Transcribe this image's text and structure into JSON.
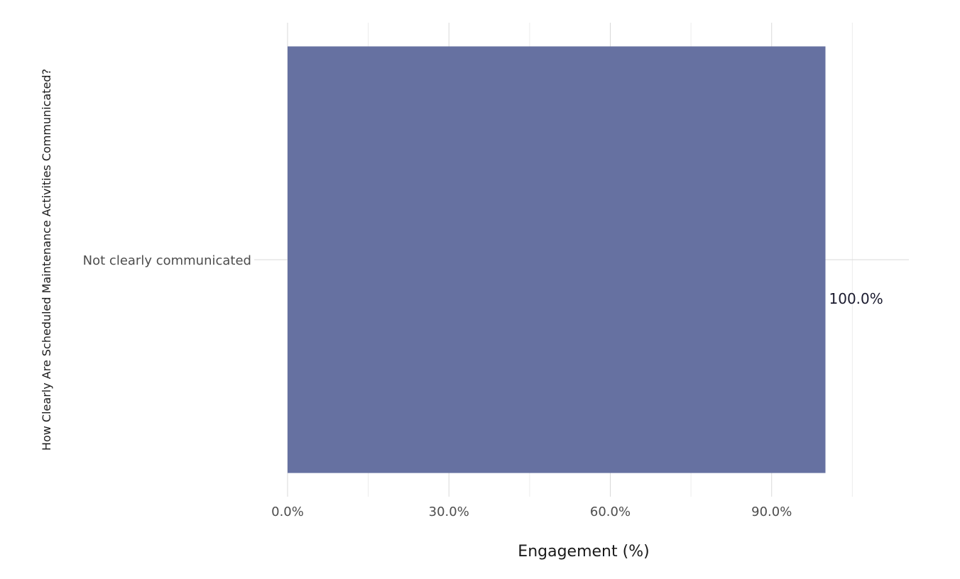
{
  "chart_data": {
    "type": "bar",
    "orientation": "horizontal",
    "categories": [
      "Not clearly communicated"
    ],
    "values": [
      100.0
    ],
    "data_labels": [
      "100.0%"
    ],
    "title": "",
    "xlabel": "Engagement (%)",
    "ylabel": "How Clearly Are Scheduled Maintenance Activities Communicated?",
    "xlim": [
      0,
      115
    ],
    "x_ticks": [
      0,
      30,
      60,
      90
    ],
    "x_tick_labels": [
      "0.0%",
      "30.0%",
      "60.0%",
      "90.0%"
    ],
    "grid": true,
    "legend": "none",
    "bar_color": "#636e9f",
    "grid_color": "#d9d9d9"
  }
}
